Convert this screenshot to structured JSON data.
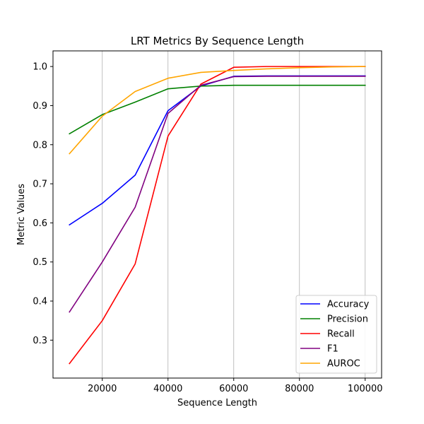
{
  "chart_data": {
    "type": "line",
    "title": "LRT Metrics By Sequence Length",
    "xlabel": "Sequence Length",
    "ylabel": "Metric Values",
    "x": [
      10000,
      20000,
      30000,
      40000,
      50000,
      60000,
      70000,
      80000,
      90000,
      100000
    ],
    "xlim": [
      5000,
      105000
    ],
    "ylim": [
      0.203,
      1.04
    ],
    "xticks": [
      20000,
      40000,
      60000,
      80000,
      100000
    ],
    "xtick_labels": [
      "20000",
      "40000",
      "60000",
      "80000",
      "100000"
    ],
    "yticks": [
      0.3,
      0.4,
      0.5,
      0.6,
      0.7,
      0.8,
      0.9,
      1.0
    ],
    "ytick_labels": [
      "0.3",
      "0.4",
      "0.5",
      "0.6",
      "0.7",
      "0.8",
      "0.9",
      "1.0"
    ],
    "grid": "vertical",
    "legend_position": "bottom-right",
    "series": [
      {
        "name": "Accuracy",
        "color": "#0000ff",
        "values": [
          0.595,
          0.65,
          0.722,
          0.887,
          0.95,
          0.975,
          0.976,
          0.976,
          0.976,
          0.976
        ]
      },
      {
        "name": "Precision",
        "color": "#008000",
        "values": [
          0.828,
          0.877,
          0.909,
          0.943,
          0.95,
          0.952,
          0.952,
          0.952,
          0.952,
          0.952
        ]
      },
      {
        "name": "Recall",
        "color": "#ff0000",
        "values": [
          0.24,
          0.35,
          0.495,
          0.822,
          0.955,
          0.998,
          1.0,
          1.0,
          1.0,
          1.0
        ]
      },
      {
        "name": "F1",
        "color": "#800080",
        "values": [
          0.372,
          0.5,
          0.64,
          0.88,
          0.952,
          0.974,
          0.975,
          0.975,
          0.975,
          0.975
        ]
      },
      {
        "name": "AUROC",
        "color": "#ffa500",
        "values": [
          0.777,
          0.873,
          0.936,
          0.97,
          0.985,
          0.99,
          0.994,
          0.997,
          0.999,
          1.0
        ]
      }
    ]
  }
}
